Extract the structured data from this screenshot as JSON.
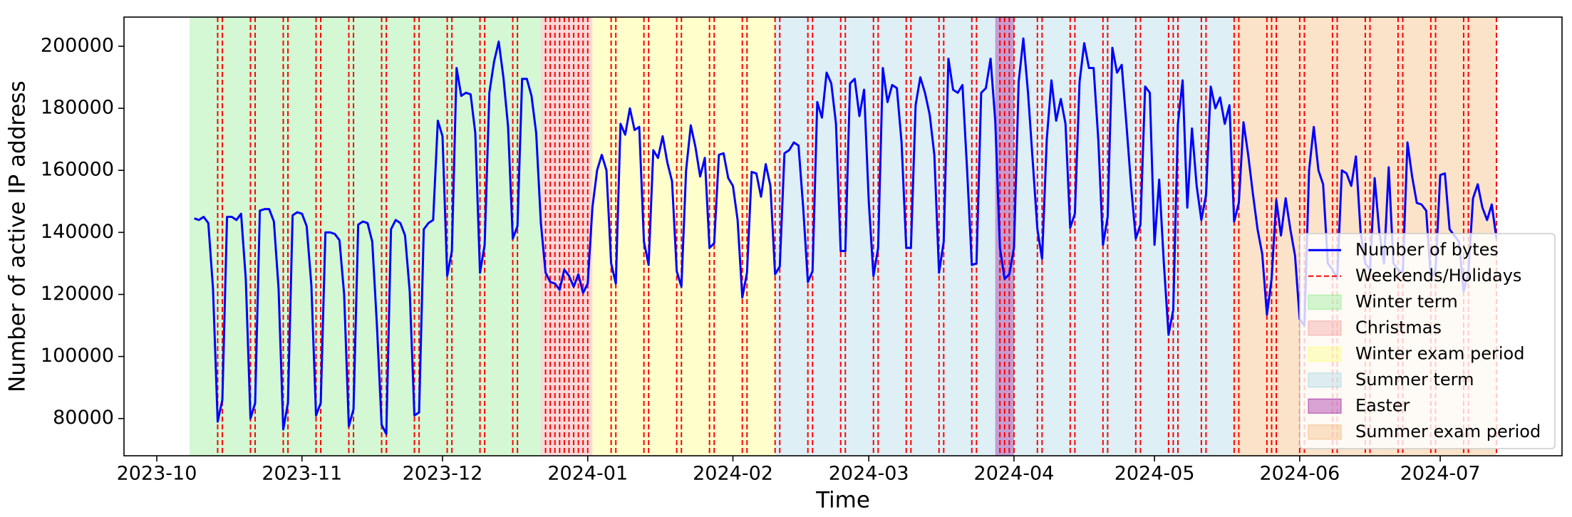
{
  "chart_data": {
    "type": "line",
    "xlabel": "Time",
    "ylabel": "Number of active IP address",
    "x": [
      "2023-10-09",
      "2023-10-10",
      "2023-10-11",
      "2023-10-12",
      "2023-10-13",
      "2023-10-14",
      "2023-10-15",
      "2023-10-16",
      "2023-10-17",
      "2023-10-18",
      "2023-10-19",
      "2023-10-20",
      "2023-10-21",
      "2023-10-22",
      "2023-10-23",
      "2023-10-24",
      "2023-10-25",
      "2023-10-26",
      "2023-10-27",
      "2023-10-28",
      "2023-10-29",
      "2023-10-30",
      "2023-10-31",
      "2023-11-01",
      "2023-11-02",
      "2023-11-03",
      "2023-11-04",
      "2023-11-05",
      "2023-11-06",
      "2023-11-07",
      "2023-11-08",
      "2023-11-09",
      "2023-11-10",
      "2023-11-11",
      "2023-11-12",
      "2023-11-13",
      "2023-11-14",
      "2023-11-15",
      "2023-11-16",
      "2023-11-17",
      "2023-11-18",
      "2023-11-19",
      "2023-11-20",
      "2023-11-21",
      "2023-11-22",
      "2023-11-23",
      "2023-11-24",
      "2023-11-25",
      "2023-11-26",
      "2023-11-27",
      "2023-11-28",
      "2023-11-29",
      "2023-11-30",
      "2023-12-01",
      "2023-12-02",
      "2023-12-03",
      "2023-12-04",
      "2023-12-05",
      "2023-12-06",
      "2023-12-07",
      "2023-12-08",
      "2023-12-09",
      "2023-12-10",
      "2023-12-11",
      "2023-12-12",
      "2023-12-13",
      "2023-12-14",
      "2023-12-15",
      "2023-12-16",
      "2023-12-17",
      "2023-12-18",
      "2023-12-19",
      "2023-12-20",
      "2023-12-21",
      "2023-12-22",
      "2023-12-23",
      "2023-12-24",
      "2023-12-25",
      "2023-12-26",
      "2023-12-27",
      "2023-12-28",
      "2023-12-29",
      "2023-12-30",
      "2023-12-31",
      "2024-01-01",
      "2024-01-02",
      "2024-01-03",
      "2024-01-04",
      "2024-01-05",
      "2024-01-06",
      "2024-01-07",
      "2024-01-08",
      "2024-01-09",
      "2024-01-10",
      "2024-01-11",
      "2024-01-12",
      "2024-01-13",
      "2024-01-14",
      "2024-01-15",
      "2024-01-16",
      "2024-01-17",
      "2024-01-18",
      "2024-01-19",
      "2024-01-20",
      "2024-01-21",
      "2024-01-22",
      "2024-01-23",
      "2024-01-24",
      "2024-01-25",
      "2024-01-26",
      "2024-01-27",
      "2024-01-28",
      "2024-01-29",
      "2024-01-30",
      "2024-01-31",
      "2024-02-01",
      "2024-02-02",
      "2024-02-03",
      "2024-02-04",
      "2024-02-05",
      "2024-02-06",
      "2024-02-07",
      "2024-02-08",
      "2024-02-09",
      "2024-02-10",
      "2024-02-11",
      "2024-02-12",
      "2024-02-13",
      "2024-02-14",
      "2024-02-15",
      "2024-02-16",
      "2024-02-17",
      "2024-02-18",
      "2024-02-19",
      "2024-02-20",
      "2024-02-21",
      "2024-02-22",
      "2024-02-23",
      "2024-02-24",
      "2024-02-25",
      "2024-02-26",
      "2024-02-27",
      "2024-02-28",
      "2024-02-29",
      "2024-03-01",
      "2024-03-02",
      "2024-03-03",
      "2024-03-04",
      "2024-03-05",
      "2024-03-06",
      "2024-03-07",
      "2024-03-08",
      "2024-03-09",
      "2024-03-10",
      "2024-03-11",
      "2024-03-12",
      "2024-03-13",
      "2024-03-14",
      "2024-03-15",
      "2024-03-16",
      "2024-03-17",
      "2024-03-18",
      "2024-03-19",
      "2024-03-20",
      "2024-03-21",
      "2024-03-22",
      "2024-03-23",
      "2024-03-24",
      "2024-03-25",
      "2024-03-26",
      "2024-03-27",
      "2024-03-28",
      "2024-03-29",
      "2024-03-30",
      "2024-03-31",
      "2024-04-01",
      "2024-04-02",
      "2024-04-03",
      "2024-04-04",
      "2024-04-05",
      "2024-04-06",
      "2024-04-07",
      "2024-04-08",
      "2024-04-09",
      "2024-04-10",
      "2024-04-11",
      "2024-04-12",
      "2024-04-13",
      "2024-04-14",
      "2024-04-15",
      "2024-04-16",
      "2024-04-17",
      "2024-04-18",
      "2024-04-19",
      "2024-04-20",
      "2024-04-21",
      "2024-04-22",
      "2024-04-23",
      "2024-04-24",
      "2024-04-25",
      "2024-04-26",
      "2024-04-27",
      "2024-04-28",
      "2024-04-29",
      "2024-04-30",
      "2024-05-01",
      "2024-05-02",
      "2024-05-03",
      "2024-05-04",
      "2024-05-05",
      "2024-05-06",
      "2024-05-07",
      "2024-05-08",
      "2024-05-09",
      "2024-05-10",
      "2024-05-11",
      "2024-05-12",
      "2024-05-13",
      "2024-05-14",
      "2024-05-15",
      "2024-05-16",
      "2024-05-17",
      "2024-05-18",
      "2024-05-19",
      "2024-05-20",
      "2024-05-21",
      "2024-05-22",
      "2024-05-23",
      "2024-05-24",
      "2024-05-25",
      "2024-05-26",
      "2024-05-27",
      "2024-05-28",
      "2024-05-29",
      "2024-05-30",
      "2024-05-31",
      "2024-06-01",
      "2024-06-02",
      "2024-06-03",
      "2024-06-04",
      "2024-06-05",
      "2024-06-06",
      "2024-06-07",
      "2024-06-08",
      "2024-06-09",
      "2024-06-10",
      "2024-06-11",
      "2024-06-12",
      "2024-06-13",
      "2024-06-14",
      "2024-06-15",
      "2024-06-16",
      "2024-06-17",
      "2024-06-18",
      "2024-06-19",
      "2024-06-20",
      "2024-06-21",
      "2024-06-22",
      "2024-06-23",
      "2024-06-24",
      "2024-06-25",
      "2024-06-26",
      "2024-06-27",
      "2024-06-28",
      "2024-06-29",
      "2024-06-30",
      "2024-07-01",
      "2024-07-02",
      "2024-07-03",
      "2024-07-04",
      "2024-07-05",
      "2024-07-06",
      "2024-07-07",
      "2024-07-08",
      "2024-07-09",
      "2024-07-10",
      "2024-07-11",
      "2024-07-12",
      "2024-07-13"
    ],
    "series": [
      {
        "name": "Number of bytes",
        "color": "#0000ff",
        "values": [
          144500,
          144000,
          145000,
          143000,
          122000,
          79000,
          86000,
          145000,
          145000,
          144000,
          146000,
          125000,
          80000,
          85000,
          147000,
          147500,
          147500,
          143500,
          122000,
          76500,
          85000,
          145500,
          146500,
          146000,
          142000,
          123000,
          81000,
          85000,
          140000,
          140000,
          139500,
          137500,
          120000,
          77500,
          83000,
          142500,
          143500,
          143000,
          137000,
          110000,
          78000,
          75000,
          141000,
          144000,
          143000,
          139000,
          121000,
          81000,
          82000,
          141000,
          143000,
          144000,
          176000,
          171000,
          126000,
          134000,
          193000,
          184000,
          185000,
          184500,
          172000,
          127000,
          136000,
          185000,
          195000,
          201500,
          190000,
          174000,
          138000,
          142000,
          189500,
          189500,
          184000,
          172000,
          143000,
          127000,
          124000,
          123500,
          121500,
          128000,
          126000,
          122500,
          126500,
          120500,
          123500,
          148000,
          160000,
          165000,
          160000,
          130000,
          123500,
          175000,
          171500,
          180000,
          173000,
          174000,
          137000,
          129500,
          166500,
          164000,
          171000,
          162500,
          156500,
          127500,
          122500,
          160000,
          174500,
          167500,
          158000,
          164000,
          135000,
          136500,
          165000,
          165500,
          157500,
          155000,
          144000,
          119000,
          127000,
          159500,
          159000,
          151500,
          162000,
          155000,
          126500,
          129000,
          165500,
          166500,
          169000,
          168000,
          148000,
          124000,
          127500,
          182000,
          177000,
          191500,
          188000,
          175000,
          134000,
          134000,
          188000,
          189500,
          177500,
          186000,
          150000,
          126000,
          135000,
          193000,
          182000,
          187500,
          186500,
          169000,
          135000,
          135000,
          181000,
          190000,
          185000,
          178000,
          165000,
          127000,
          137000,
          196000,
          186000,
          185000,
          187500,
          160000,
          129500,
          130000,
          185000,
          186500,
          196000,
          176000,
          135000,
          125000,
          126500,
          135000,
          188500,
          202500,
          185000,
          163000,
          141000,
          131500,
          170000,
          189000,
          176000,
          183000,
          175000,
          141500,
          146000,
          188500,
          201000,
          193000,
          193000,
          170000,
          136000,
          145000,
          199500,
          191500,
          194000,
          175000,
          155000,
          138000,
          142500,
          187000,
          185000,
          136000,
          157000,
          130000,
          107000,
          115000,
          175000,
          189000,
          148000,
          173500,
          155000,
          144000,
          152000,
          187000,
          180000,
          183500,
          175000,
          181000,
          143500,
          149500,
          175500,
          165000,
          152500,
          141000,
          133000,
          113500,
          125000,
          150500,
          139000,
          151000,
          141000,
          132500,
          112000,
          110000,
          160000,
          174000,
          160000,
          155500,
          130000,
          128000,
          125000,
          160000,
          159000,
          155000,
          164500,
          140000,
          130000,
          128000,
          157500,
          140000,
          130000,
          161000,
          130000,
          128000,
          127000,
          169000,
          158000,
          149500,
          149000,
          147000,
          125000,
          128000,
          158500,
          159000,
          141000,
          139000,
          137000,
          121000,
          127000,
          151000,
          155500,
          148000,
          144000,
          149000,
          138000
        ]
      }
    ],
    "vlines": {
      "name": "Weekends/Holidays",
      "color": "#ff0000",
      "dates": [
        "2023-10-14",
        "2023-10-15",
        "2023-10-21",
        "2023-10-22",
        "2023-10-28",
        "2023-10-29",
        "2023-11-04",
        "2023-11-05",
        "2023-11-11",
        "2023-11-12",
        "2023-11-18",
        "2023-11-19",
        "2023-11-25",
        "2023-11-26",
        "2023-12-02",
        "2023-12-03",
        "2023-12-09",
        "2023-12-10",
        "2023-12-16",
        "2023-12-17",
        "2023-12-23",
        "2023-12-24",
        "2023-12-25",
        "2023-12-26",
        "2023-12-27",
        "2023-12-28",
        "2023-12-29",
        "2023-12-30",
        "2023-12-31",
        "2024-01-01",
        "2024-01-06",
        "2024-01-07",
        "2024-01-13",
        "2024-01-14",
        "2024-01-20",
        "2024-01-21",
        "2024-01-27",
        "2024-01-28",
        "2024-02-03",
        "2024-02-04",
        "2024-02-10",
        "2024-02-11",
        "2024-02-17",
        "2024-02-18",
        "2024-02-24",
        "2024-02-25",
        "2024-03-02",
        "2024-03-03",
        "2024-03-09",
        "2024-03-10",
        "2024-03-16",
        "2024-03-17",
        "2024-03-23",
        "2024-03-24",
        "2024-03-29",
        "2024-03-30",
        "2024-03-31",
        "2024-04-01",
        "2024-04-06",
        "2024-04-07",
        "2024-04-13",
        "2024-04-14",
        "2024-04-20",
        "2024-04-21",
        "2024-04-27",
        "2024-04-28",
        "2024-05-04",
        "2024-05-05",
        "2024-05-06",
        "2024-05-11",
        "2024-05-12",
        "2024-05-18",
        "2024-05-19",
        "2024-05-25",
        "2024-05-26",
        "2024-05-27",
        "2024-06-01",
        "2024-06-02",
        "2024-06-08",
        "2024-06-09",
        "2024-06-15",
        "2024-06-16",
        "2024-06-22",
        "2024-06-23",
        "2024-06-29",
        "2024-06-30",
        "2024-07-06",
        "2024-07-07",
        "2024-07-13"
      ]
    },
    "spans": [
      {
        "name": "Winter term",
        "start": "2023-10-08",
        "end": "2023-12-22",
        "color": "#90ee90"
      },
      {
        "name": "Christmas",
        "start": "2023-12-22",
        "end": "2024-01-02",
        "color": "#f4a0a0"
      },
      {
        "name": "Winter exam period",
        "start": "2024-01-02",
        "end": "2024-02-10",
        "color": "#ffff80"
      },
      {
        "name": "Summer term",
        "start": "2024-02-10",
        "end": "2024-05-18",
        "color": "#add8e6"
      },
      {
        "name": "Easter",
        "start": "2024-03-28",
        "end": "2024-04-01",
        "color": "#a020a0"
      },
      {
        "name": "Summer exam period",
        "start": "2024-05-18",
        "end": "2024-07-13",
        "color": "#f4b87a"
      }
    ],
    "xlim": [
      "2023-09-24",
      "2024-07-27"
    ],
    "xticks": [
      {
        "value": "2023-10-01",
        "label": "2023-10"
      },
      {
        "value": "2023-11-01",
        "label": "2023-11"
      },
      {
        "value": "2023-12-01",
        "label": "2023-12"
      },
      {
        "value": "2024-01-01",
        "label": "2024-01"
      },
      {
        "value": "2024-02-01",
        "label": "2024-02"
      },
      {
        "value": "2024-03-01",
        "label": "2024-03"
      },
      {
        "value": "2024-04-01",
        "label": "2024-04"
      },
      {
        "value": "2024-05-01",
        "label": "2024-05"
      },
      {
        "value": "2024-06-01",
        "label": "2024-06"
      },
      {
        "value": "2024-07-01",
        "label": "2024-07"
      }
    ],
    "ylim": [
      68000,
      209400
    ],
    "yticks": [
      80000,
      100000,
      120000,
      140000,
      160000,
      180000,
      200000
    ],
    "legend": "lower right"
  }
}
